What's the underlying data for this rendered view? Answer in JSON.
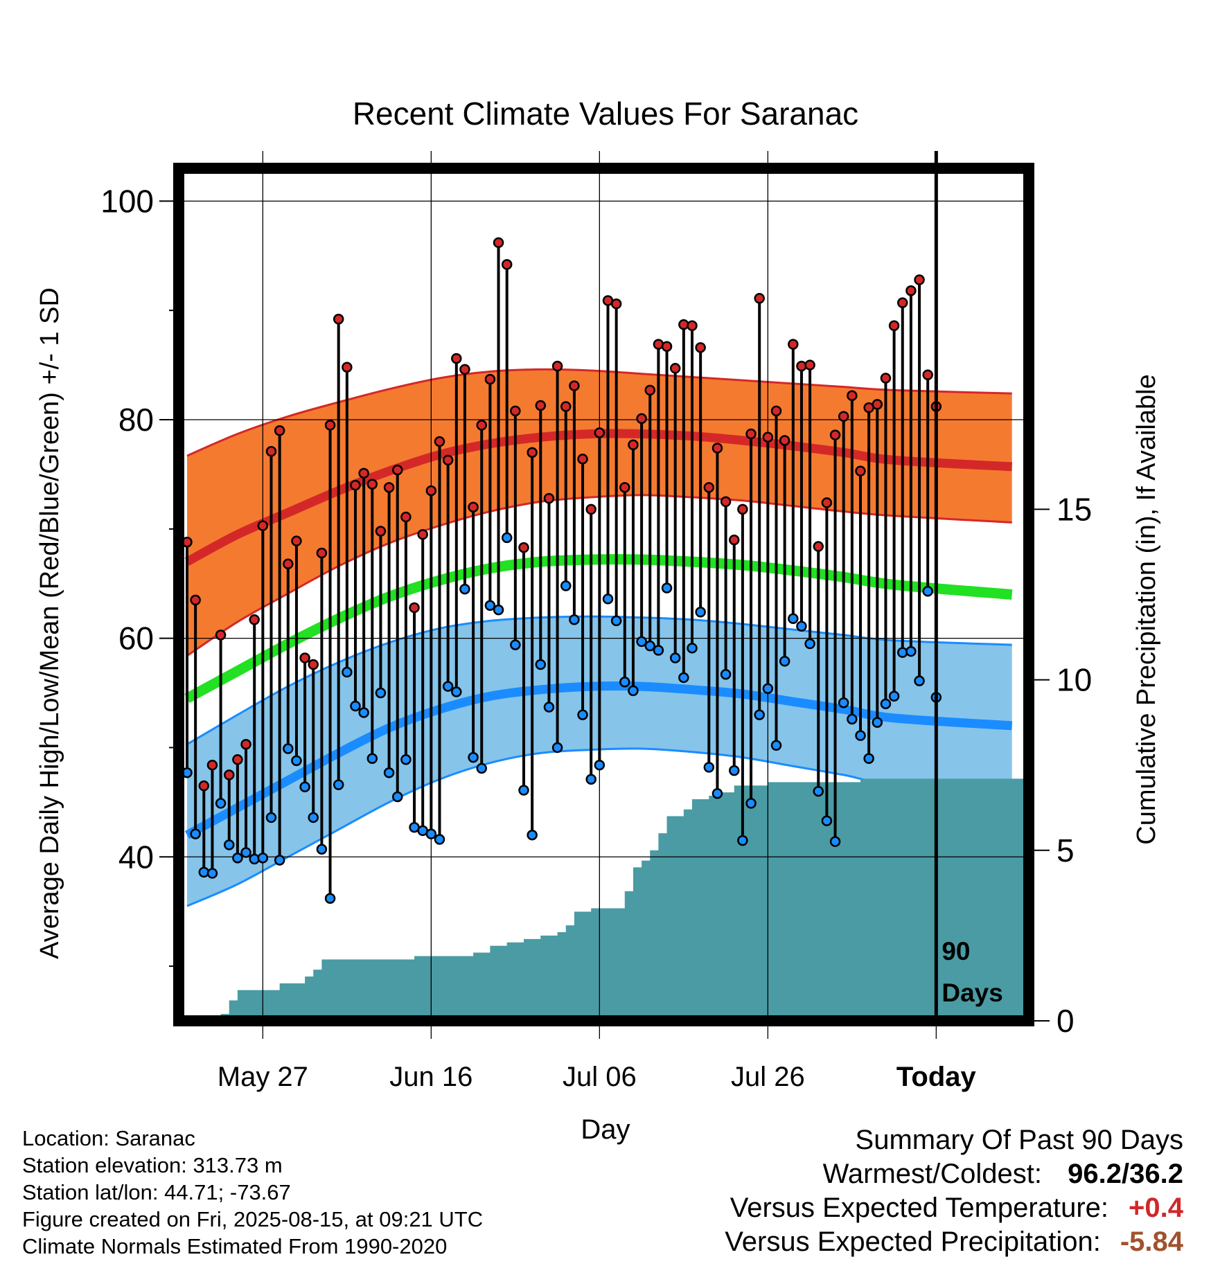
{
  "colors": {
    "high_band": "#f47a30",
    "high_line": "#d42828",
    "mean_line": "#22e022",
    "low_band": "#86c4ea",
    "low_line": "#1a8cff",
    "precip": "#4a9ba3",
    "high_dot": "#d42828",
    "low_dot": "#1a8cff"
  },
  "chart_data": {
    "type": "line",
    "title": "Recent Climate Values For Saranac",
    "xlabel": "Day",
    "ylabel": "Average Daily High/Low/Mean (Red/Blue/Green) +/- 1 SD",
    "y2label": "Cumulative Precipitation (in), If Available",
    "ylim": [
      25,
      103
    ],
    "y_ticks": [
      40,
      60,
      80,
      100
    ],
    "y2lim": [
      0,
      25
    ],
    "y2_ticks": [
      0,
      5,
      10,
      15
    ],
    "x_ticks": [
      "May 27",
      "Jun 16",
      "Jul 06",
      "Jul 26",
      "Today"
    ],
    "today_label": "90 Days",
    "grid": true,
    "normals": {
      "high_mean": [
        67,
        69.5,
        71.5,
        73.5,
        75.3,
        76.8,
        77.8,
        78.4,
        78.7,
        78.7,
        78.5,
        78.1,
        77.6,
        77,
        76.3,
        75.7
      ],
      "high_upper": [
        76.7,
        78.7,
        80.3,
        81.6,
        82.8,
        83.8,
        84.4,
        84.6,
        84.5,
        84.2,
        83.9,
        83.6,
        83.3,
        83,
        82.7,
        82.4
      ],
      "high_lower": [
        58.4,
        61.5,
        64.1,
        66.6,
        68.7,
        70.3,
        71.6,
        72.5,
        72.9,
        73.1,
        72.9,
        72.6,
        72.1,
        71.6,
        71.2,
        70.6
      ],
      "mean": [
        54.5,
        57,
        59.5,
        61.8,
        63.8,
        65.3,
        66.4,
        67,
        67.2,
        67.2,
        67,
        66.7,
        66.2,
        65.6,
        64.9,
        64
      ],
      "low_mean": [
        42,
        44.5,
        47,
        49.5,
        51.8,
        53.5,
        54.7,
        55.3,
        55.6,
        55.6,
        55.3,
        54.9,
        54.2,
        53.5,
        52.7,
        52
      ],
      "low_upper": [
        50.3,
        53,
        55.6,
        57.8,
        59.6,
        60.9,
        61.6,
        61.9,
        62,
        61.9,
        61.7,
        61.3,
        60.8,
        60.3,
        59.8,
        59.4
      ],
      "low_lower": [
        35.5,
        37.5,
        40,
        42.5,
        45,
        47.1,
        48.6,
        49.5,
        49.8,
        49.9,
        49.6,
        49.1,
        48.3,
        47.5,
        46.6,
        45.9
      ]
    },
    "normals_days": [
      1,
      7,
      13,
      19,
      25,
      31,
      37,
      43,
      49,
      55,
      61,
      67,
      73,
      79,
      85,
      99
    ],
    "days": [
      1,
      2,
      3,
      4,
      5,
      6,
      7,
      8,
      9,
      10,
      11,
      12,
      13,
      14,
      15,
      16,
      17,
      18,
      19,
      20,
      21,
      22,
      23,
      24,
      25,
      26,
      27,
      28,
      29,
      30,
      31,
      32,
      33,
      34,
      35,
      36,
      37,
      38,
      39,
      40,
      41,
      42,
      43,
      44,
      45,
      46,
      47,
      48,
      49,
      50,
      51,
      52,
      53,
      54,
      55,
      56,
      57,
      58,
      59,
      60,
      61,
      62,
      63,
      64,
      65,
      66,
      67,
      68,
      69,
      70,
      71,
      72,
      73,
      74,
      75,
      76,
      77,
      78,
      79,
      80,
      81,
      82,
      83,
      84,
      85,
      86,
      87,
      88,
      89,
      90
    ],
    "series": [
      {
        "name": "High",
        "values": [
          68.8,
          63.5,
          46.5,
          48.4,
          60.3,
          47.5,
          48.9,
          50.3,
          61.7,
          70.3,
          77.1,
          79,
          66.8,
          68.9,
          58.2,
          57.6,
          67.8,
          79.5,
          89.2,
          84.8,
          74,
          75.1,
          74.1,
          69.8,
          73.8,
          75.4,
          71.1,
          62.8,
          69.5,
          73.5,
          78,
          76.3,
          85.6,
          84.6,
          72,
          79.5,
          83.7,
          96.2,
          94.2,
          80.8,
          68.3,
          77,
          81.3,
          72.8,
          84.9,
          81.2,
          83.1,
          76.4,
          71.8,
          78.8,
          90.9,
          90.6,
          73.8,
          77.7,
          80.1,
          82.7,
          86.9,
          86.7,
          84.7,
          88.7,
          88.6,
          86.6,
          73.8,
          77.4,
          72.5,
          69,
          71.8,
          78.7,
          91.1,
          78.4,
          80.8,
          78.1,
          86.9,
          84.9,
          85,
          68.4,
          72.4,
          78.6,
          80.3,
          82.2,
          75.3,
          81.1,
          81.4,
          83.8,
          88.6,
          90.7,
          91.8,
          92.8,
          84.1,
          81.2
        ]
      },
      {
        "name": "Low",
        "values": [
          47.7,
          42.1,
          38.6,
          38.5,
          44.9,
          41.1,
          39.9,
          40.4,
          39.8,
          39.9,
          43.6,
          39.7,
          49.9,
          48.8,
          46.4,
          43.6,
          40.7,
          36.2,
          46.6,
          56.9,
          53.8,
          53.2,
          49,
          55,
          47.7,
          45.5,
          48.9,
          42.7,
          42.4,
          42.1,
          41.6,
          55.6,
          55.1,
          64.5,
          49.1,
          48.1,
          63,
          62.6,
          69.2,
          59.4,
          46.1,
          42,
          57.6,
          53.7,
          50,
          64.8,
          61.7,
          53,
          47.1,
          48.4,
          63.6,
          61.6,
          56,
          55.2,
          59.7,
          59.3,
          58.9,
          64.6,
          58.2,
          56.4,
          59.1,
          62.4,
          48.2,
          45.8,
          56.7,
          47.9,
          41.5,
          44.9,
          53,
          55.4,
          50.2,
          57.9,
          61.8,
          61.1,
          59.5,
          46,
          43.3,
          41.4,
          54.1,
          52.6,
          51.1,
          49,
          52.3,
          54,
          54.7,
          58.7,
          58.8,
          56.1,
          64.3,
          54.6
        ]
      }
    ],
    "precip_cumulative": [
      0,
      0.1,
      0.1,
      0.1,
      0.2,
      0.6,
      0.9,
      0.9,
      0.9,
      0.9,
      0.9,
      1.1,
      1.1,
      1.1,
      1.3,
      1.5,
      1.8,
      1.8,
      1.8,
      1.8,
      1.8,
      1.8,
      1.8,
      1.8,
      1.8,
      1.8,
      1.8,
      1.9,
      1.9,
      1.9,
      1.9,
      1.9,
      1.9,
      1.9,
      2,
      2,
      2.2,
      2.2,
      2.3,
      2.3,
      2.4,
      2.4,
      2.5,
      2.5,
      2.6,
      2.8,
      3.2,
      3.2,
      3.3,
      3.3,
      3.3,
      3.3,
      3.8,
      4.5,
      4.7,
      5,
      5.5,
      6,
      6,
      6.2,
      6.5,
      6.5,
      6.6,
      6.7,
      6.7,
      6.9,
      6.9,
      6.9,
      6.9,
      7,
      7,
      7,
      7,
      7,
      7,
      7,
      7,
      7,
      7,
      7,
      7.1,
      7.1,
      7.1,
      7.1,
      7.1,
      7.1,
      7.1,
      7.1,
      7.1,
      7.1
    ]
  },
  "info": {
    "location": "Location: Saranac",
    "elevation": "Station elevation: 313.73 m",
    "latlon": "Station lat/lon: 44.71; -73.67",
    "created": "Figure created on Fri, 2025-08-15, at 09:21 UTC",
    "normals": "Climate Normals Estimated From 1990-2020"
  },
  "summary": {
    "title": "Summary Of Past 90 Days",
    "warm_cold_label": "Warmest/Coldest:",
    "warm_cold_value": "96.2/36.2",
    "temp_label": "Versus Expected Temperature:",
    "temp_value": "+0.4",
    "precip_label": "Versus Expected Precipitation:",
    "precip_value": "-5.84"
  }
}
